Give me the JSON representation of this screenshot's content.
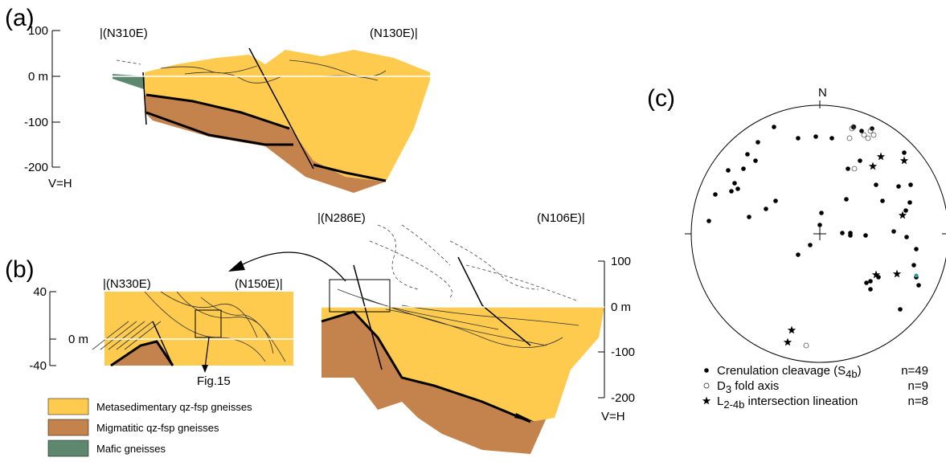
{
  "panel_a": {
    "label": "(a)",
    "scale": [
      "100",
      "0 m",
      "-100",
      "-200"
    ],
    "scale_note": "V=H",
    "left_direction": "|(N310E)",
    "right_direction": "(N130E)|"
  },
  "panel_b": {
    "label": "(b)",
    "scale": [
      "100",
      "0 m",
      "-100",
      "-200"
    ],
    "scale_note": "V=H",
    "left_direction": "|(N286E)",
    "right_direction": "(N106E)|",
    "inset": {
      "scale": [
        "40",
        "0 m",
        "-40"
      ],
      "left_direction": "|(N330E)",
      "right_direction": "(N150E)|",
      "callout": "Fig.15"
    }
  },
  "legend": [
    "Metasedimentary qz-fsp gneisses",
    "Migmatitic qz-fsp gneisses",
    "Mafic gneisses"
  ],
  "panel_c": {
    "label": "(c)",
    "north": "N",
    "legend": [
      {
        "text": "Crenulation cleavage (S",
        "sub": "4b",
        "tail": ")",
        "count": "n=49"
      },
      {
        "text": "D",
        "sub": "3",
        "tail": " fold axis",
        "count": "n=9"
      },
      {
        "text": "L",
        "sub": "2-4b",
        "tail": " intersection lineation",
        "count": "n=8"
      }
    ]
  }
}
